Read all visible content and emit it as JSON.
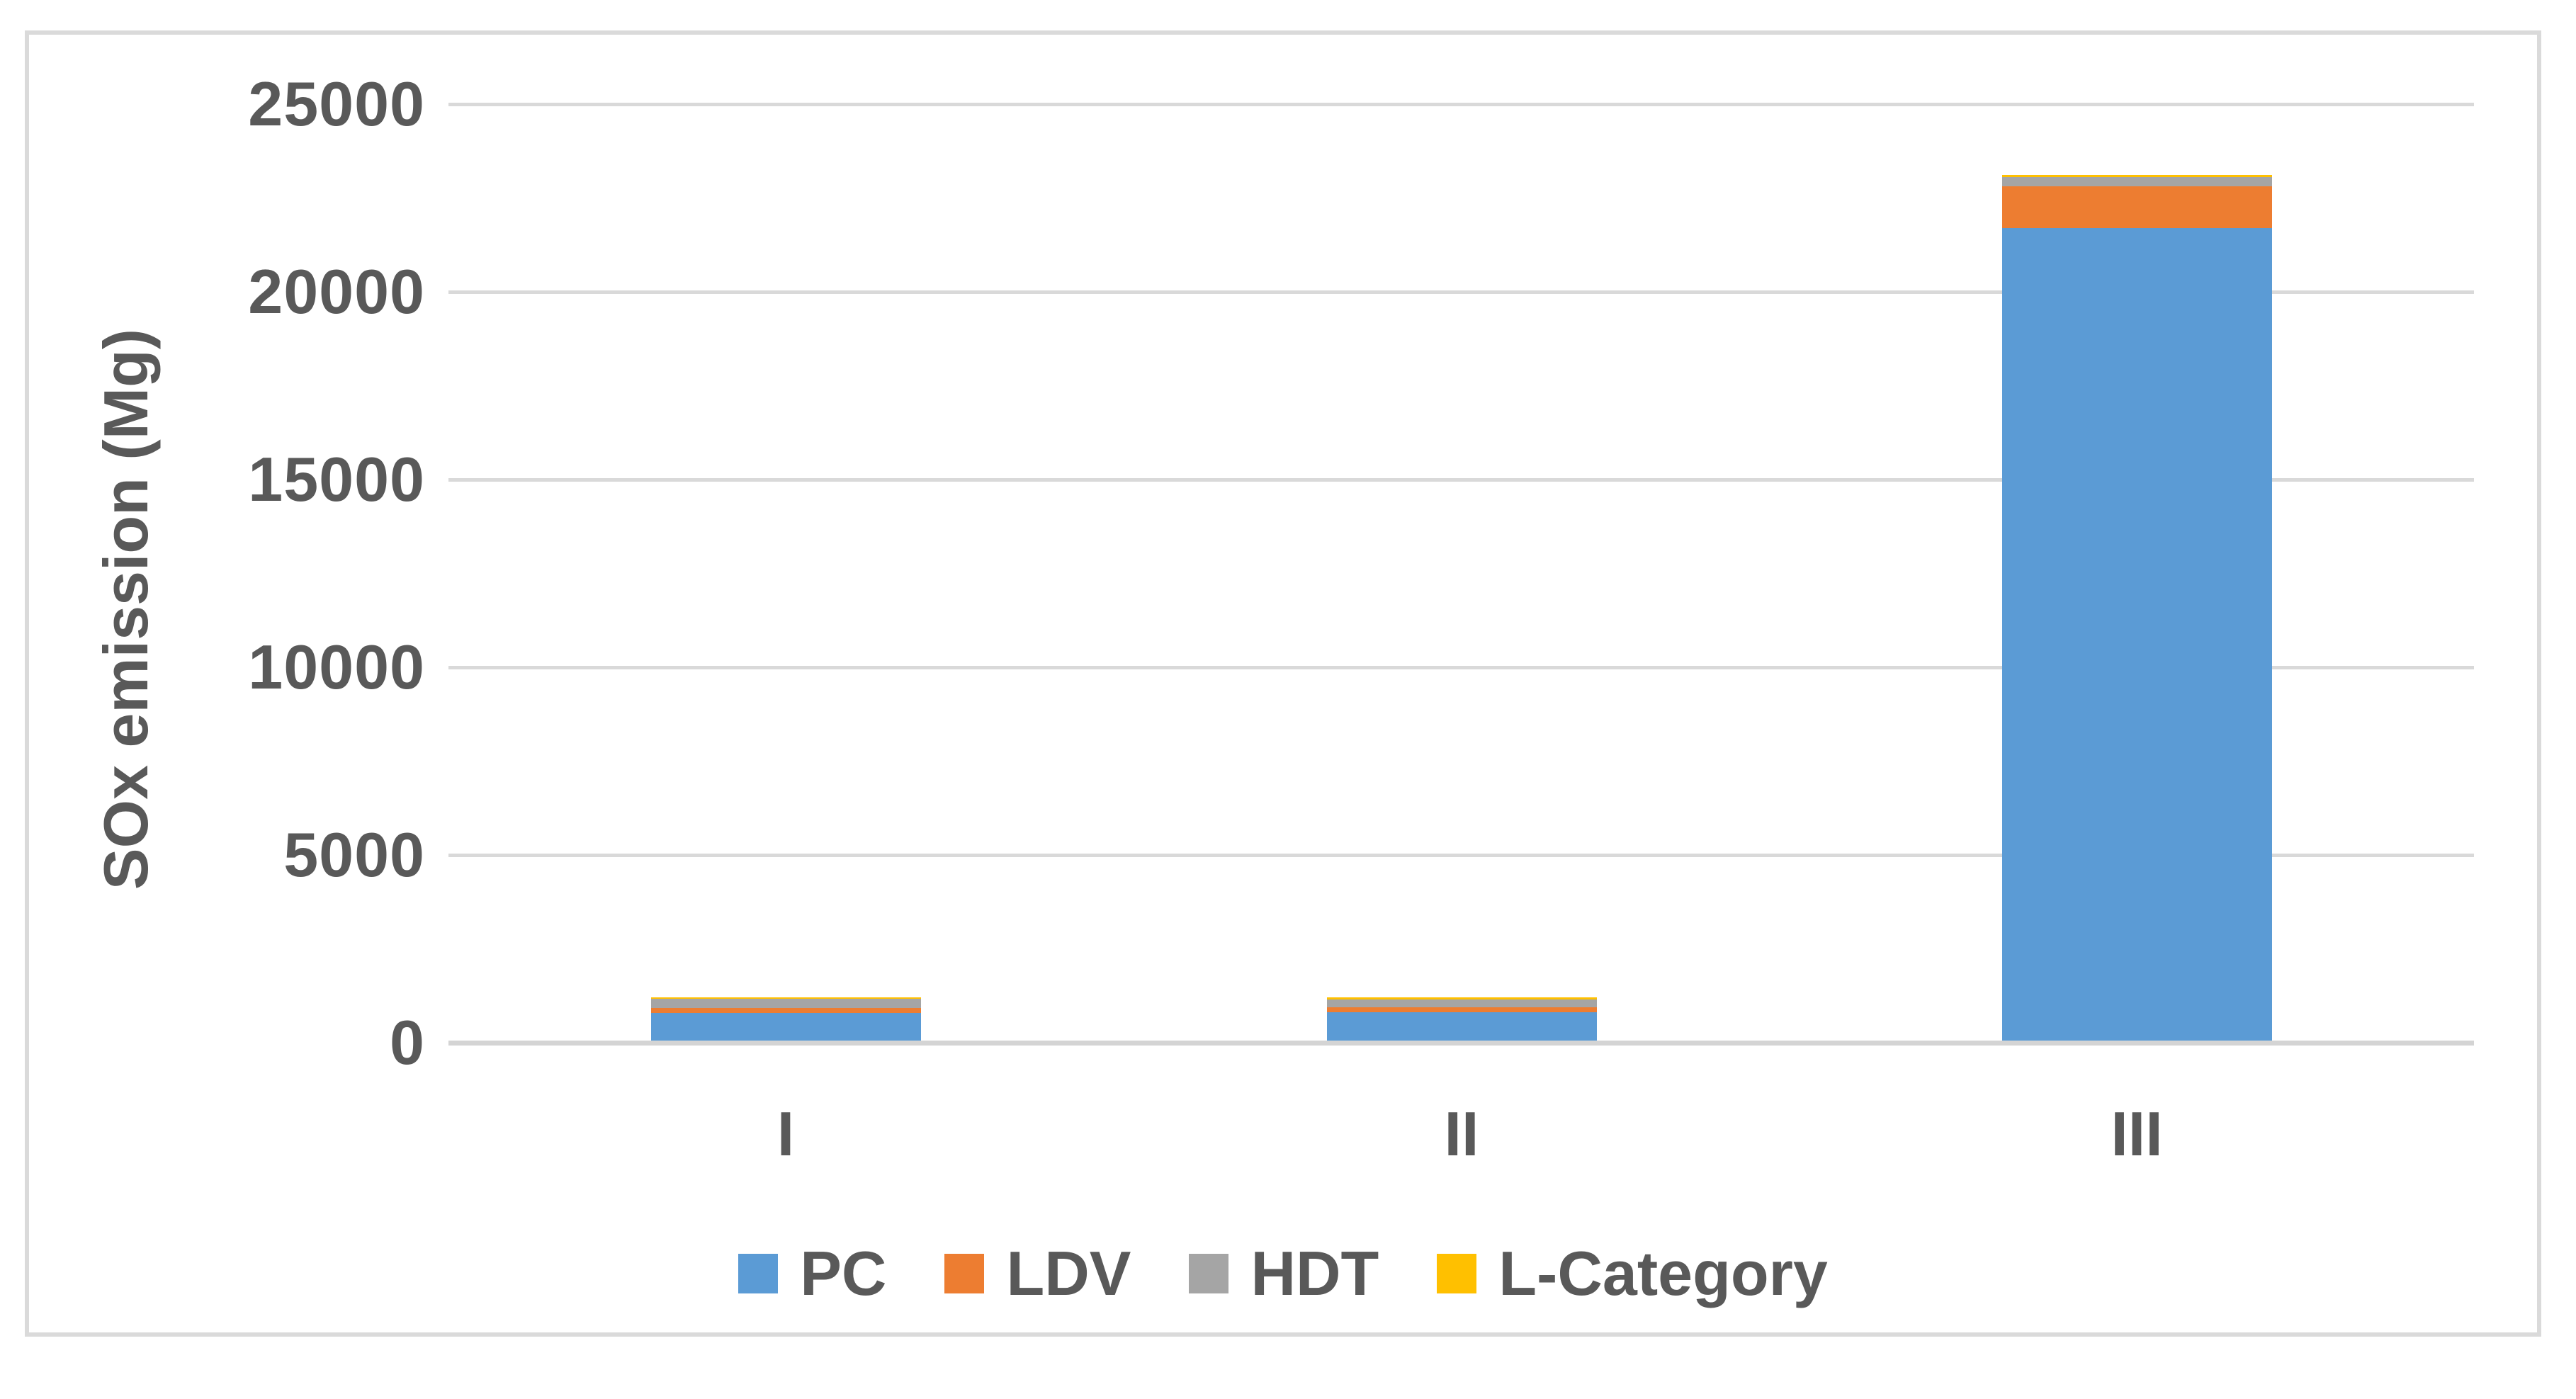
{
  "chart_data": {
    "type": "bar",
    "stacked": true,
    "title": "",
    "xlabel": "",
    "ylabel": "SOx emission (Mg)",
    "categories": [
      "I",
      "II",
      "III"
    ],
    "series": [
      {
        "name": "PC",
        "color": "#5B9BD5",
        "values": [
          800,
          820,
          21700
        ]
      },
      {
        "name": "LDV",
        "color": "#ED7D31",
        "values": [
          130,
          130,
          1120
        ]
      },
      {
        "name": "HDT",
        "color": "#A5A5A5",
        "values": [
          240,
          200,
          235
        ]
      },
      {
        "name": "L-Category",
        "color": "#FFC000",
        "values": [
          45,
          60,
          50
        ]
      }
    ],
    "totals": [
      1215,
      1210,
      23105
    ],
    "ylim": [
      0,
      25000
    ],
    "yticks": [
      0,
      5000,
      10000,
      15000,
      20000,
      25000
    ],
    "grid": true,
    "legend_position": "bottom",
    "bar_gap_width_percent": 150
  },
  "colors": {
    "text": "#595959",
    "gridline": "#D9D9D9",
    "axis_line": "#D4D4D4",
    "frame_border": "#DADADA",
    "background": "#FFFFFF"
  }
}
